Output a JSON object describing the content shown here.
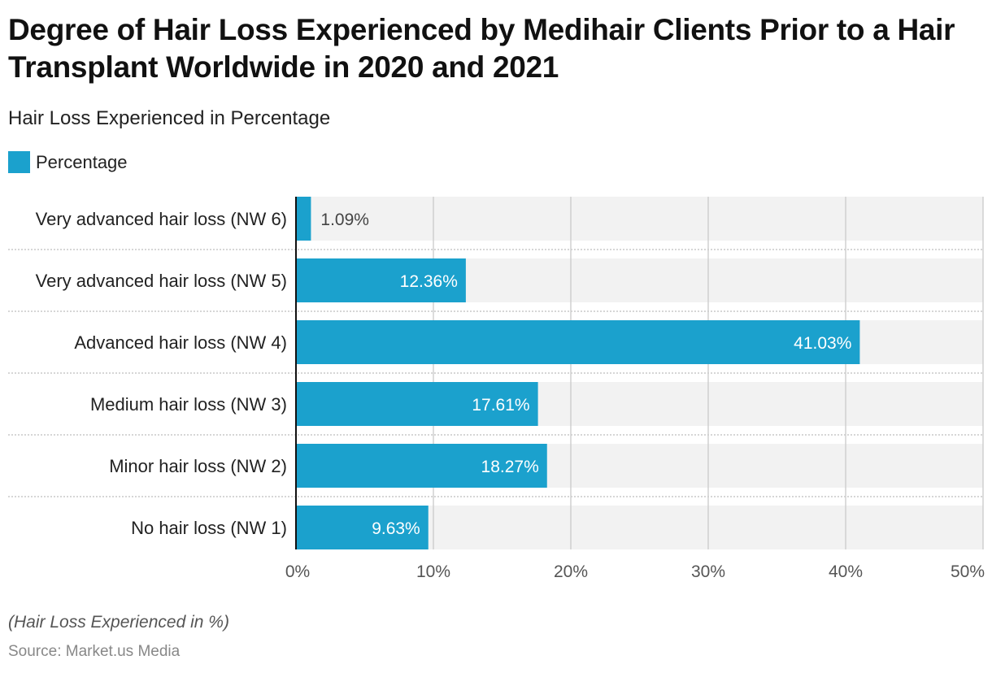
{
  "chart_data": {
    "type": "bar",
    "orientation": "horizontal",
    "title": "Degree of Hair Loss Experienced by Medihair Clients Prior to a Hair Transplant Worldwide in 2020 and 2021",
    "subtitle": "Hair Loss Experienced in Percentage",
    "legend": {
      "position": "top-left",
      "entries": [
        {
          "name": "Percentage",
          "color": "#1ba1cd"
        }
      ]
    },
    "categories": [
      "Very advanced hair loss (NW 6)",
      "Very advanced hair loss (NW 5)",
      "Advanced hair loss (NW 4)",
      "Medium hair loss (NW 3)",
      "Minor hair loss (NW 2)",
      "No hair loss (NW 1)"
    ],
    "series": [
      {
        "name": "Percentage",
        "values": [
          1.09,
          12.36,
          41.03,
          17.61,
          18.27,
          9.63
        ],
        "labels": [
          "1.09%",
          "12.36%",
          "41.03%",
          "17.61%",
          "18.27%",
          "9.63%"
        ]
      }
    ],
    "xlim": [
      0,
      50
    ],
    "xticks": [
      0,
      10,
      20,
      30,
      40,
      50
    ],
    "xtick_labels": [
      "0%",
      "10%",
      "20%",
      "30%",
      "40%",
      "50%"
    ],
    "xlabel": "",
    "ylabel": "",
    "grid": true,
    "note": "(Hair Loss Experienced in %)",
    "source": "Source: Market.us Media"
  },
  "colors": {
    "bar": "#1ba1cd",
    "track": "#f2f2f2",
    "grid": "#d0d0d0",
    "axis": "#111111"
  }
}
